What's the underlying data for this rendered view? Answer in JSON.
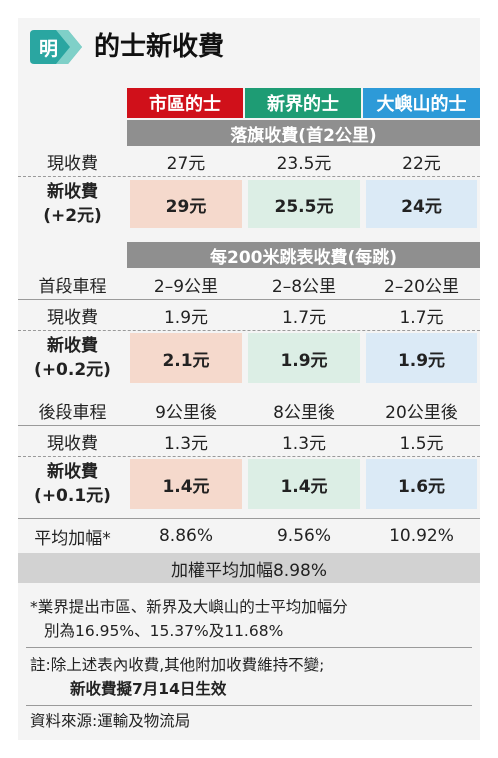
{
  "header": {
    "logo_text": "明",
    "title": "的士新收費"
  },
  "columns": {
    "urban": "市區的士",
    "nt": "新界的士",
    "lantau": "大嶼山的士"
  },
  "colors": {
    "urban": "#d0101a",
    "nt": "#1e9c74",
    "lantau": "#2d9ad8",
    "banner": "#8f8f8f"
  },
  "flagfall": {
    "banner": "落旗收費(首2公里)",
    "current_label": "現收費",
    "current": [
      "27元",
      "23.5元",
      "22元"
    ],
    "new_label_1": "新收費",
    "new_label_2": "(+2元)",
    "new": [
      "29元",
      "25.5元",
      "24元"
    ]
  },
  "jump": {
    "banner": "每200米跳表收費(每跳)",
    "first": {
      "distance_label": "首段車程",
      "distance": [
        "2–9公里",
        "2–8公里",
        "2–20公里"
      ],
      "current_label": "現收費",
      "current": [
        "1.9元",
        "1.7元",
        "1.7元"
      ],
      "new_label_1": "新收費",
      "new_label_2": "(+0.2元)",
      "new": [
        "2.1元",
        "1.9元",
        "1.9元"
      ]
    },
    "later": {
      "distance_label": "後段車程",
      "distance": [
        "9公里後",
        "8公里後",
        "20公里後"
      ],
      "current_label": "現收費",
      "current": [
        "1.3元",
        "1.3元",
        "1.5元"
      ],
      "new_label_1": "新收費",
      "new_label_2": "(+0.1元)",
      "new": [
        "1.4元",
        "1.4元",
        "1.6元"
      ]
    }
  },
  "average": {
    "label": "平均加幅*",
    "values": [
      "8.86%",
      "9.56%",
      "10.92%"
    ],
    "weighted": "加權平均加幅8.98%"
  },
  "notes": {
    "footnote_line1": "*業界提出市區、新界及大嶼山的士平均加幅分",
    "footnote_line2": "別為16.95%、15.37%及11.68%",
    "remark_line1": "註:除上述表內收費,其他附加收費維持不變;",
    "remark_line2": "新收費擬7月14日生效",
    "source": "資料來源:運輸及物流局"
  }
}
